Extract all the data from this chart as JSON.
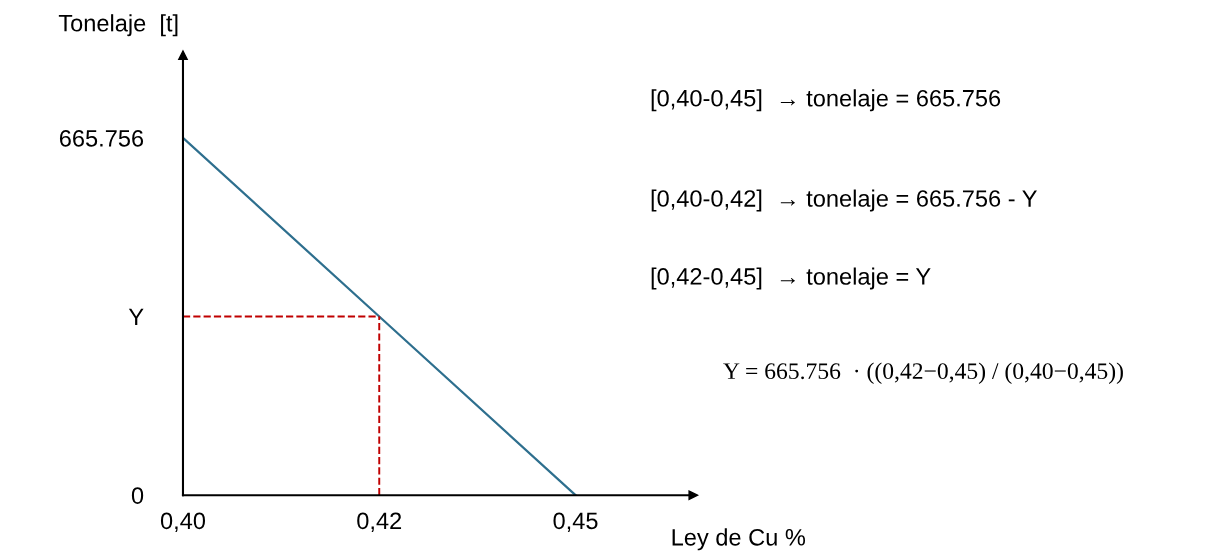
{
  "chart_data": {
    "type": "line",
    "ylabel": "Tonelaje  [t]",
    "xlabel": "Ley de Cu %",
    "categories": [
      "0,40",
      "0,42",
      "0,45"
    ],
    "series": [
      {
        "color": "#2e6f8e",
        "values": [
          665.756,
          333,
          0
        ]
      }
    ],
    "ylim": [
      0,
      820
    ],
    "yticks": [
      0,
      {
        "value": 333,
        "label": "Y"
      },
      665.756
    ],
    "ref_lines": [
      {
        "axis": "y",
        "value": 333,
        "color": "#c00000",
        "line_style": "dashed"
      },
      {
        "axis": "x",
        "value": "0,42",
        "color": "#c00000",
        "line_style": "dashed"
      }
    ],
    "annotations": [
      "[0,40-0,45]  → tonelaje = 665.756",
      "[0,40-0,42]  → tonelaje = 665.756 - Y",
      "[0,42-0,45]  → tonelaje = Y",
      "Y = 665.756  · ((0,42−0,45) / (0,40−0,45))"
    ],
    "grid": false,
    "legend": false
  }
}
